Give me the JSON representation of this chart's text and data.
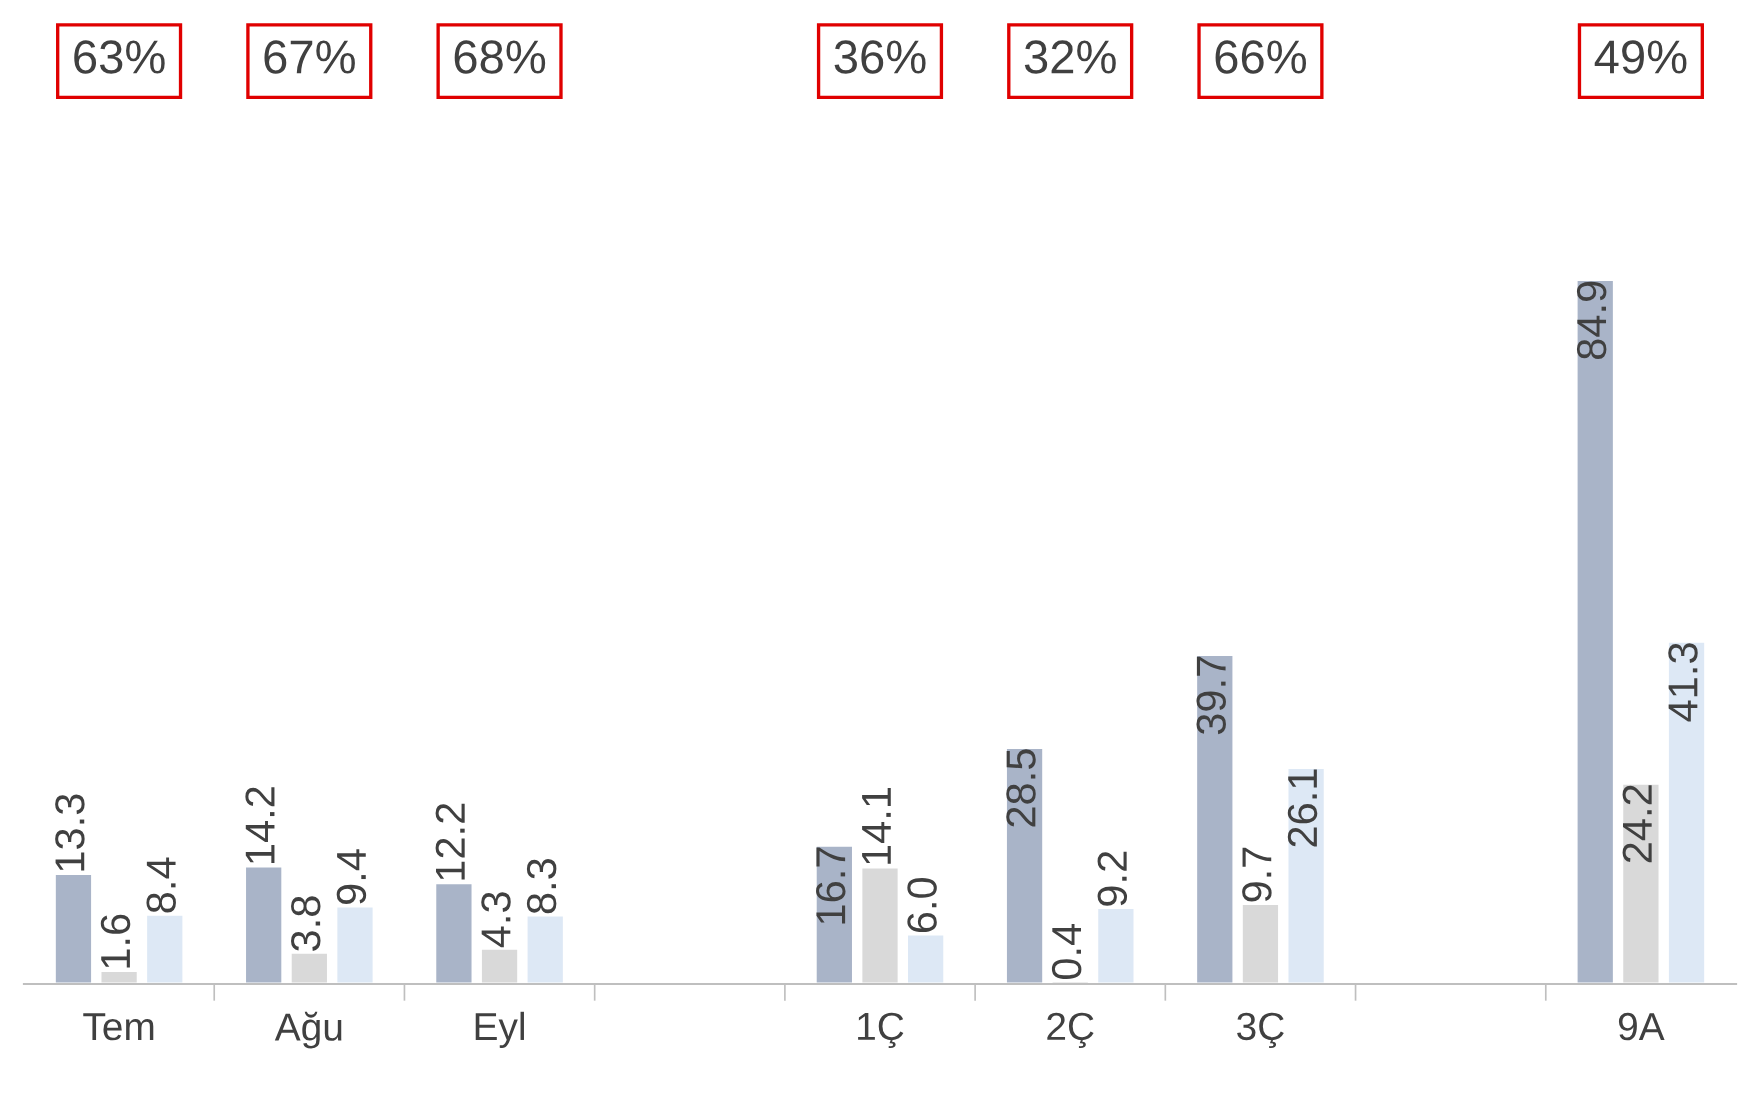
{
  "chart_data": {
    "type": "bar",
    "categories": [
      "Tem",
      "Ağu",
      "Eyl",
      null,
      "1Ç",
      "2Ç",
      "3Ç",
      null,
      "9A"
    ],
    "series": [
      {
        "color": "#a9b4c8",
        "values": [
          13.3,
          14.2,
          12.2,
          null,
          16.7,
          28.5,
          39.7,
          null,
          84.9
        ],
        "value_labels": [
          "13.3",
          "14.2",
          "12.2",
          null,
          "16.7",
          "28.5",
          "39.7",
          null,
          "84.9"
        ]
      },
      {
        "color": "#d9d9d9",
        "values": [
          1.6,
          3.8,
          4.3,
          null,
          14.1,
          0.4,
          9.7,
          null,
          24.2
        ],
        "value_labels": [
          "1.6",
          "3.8",
          "4.3",
          null,
          "14.1",
          "0.4",
          "9.7",
          null,
          "24.2"
        ]
      },
      {
        "color": "#dde8f5",
        "values": [
          8.4,
          9.4,
          8.3,
          null,
          6.0,
          9.2,
          26.1,
          null,
          41.3
        ],
        "value_labels": [
          "8.4",
          "9.4",
          "8.3",
          null,
          "6.0",
          "9.2",
          "26.1",
          null,
          "41.3"
        ]
      }
    ],
    "grid": false,
    "legend": false,
    "annotations": [
      "63%",
      "67%",
      "68%",
      "36%",
      "32%",
      "66%",
      "49%"
    ]
  }
}
